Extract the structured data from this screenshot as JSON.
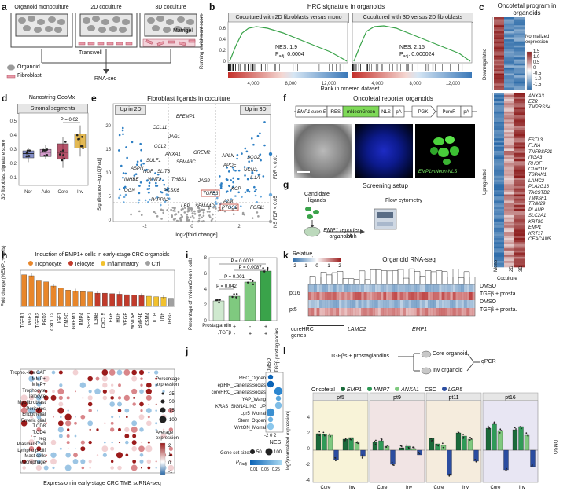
{
  "panel_labels": [
    "a",
    "b",
    "c",
    "d",
    "e",
    "f",
    "g",
    "h",
    "i",
    "j",
    "k",
    "l"
  ],
  "a": {
    "conditions": [
      "Organoid monoculture",
      "2D coculture",
      "3D coculture"
    ],
    "transwell": "Transwell",
    "matrigel": "Matrigel",
    "legend": [
      "Organoid",
      "Fibroblast"
    ],
    "output": "RNA-seq"
  },
  "b": {
    "title": "HRC signature in organoids",
    "ylabel": "Running enrichment score",
    "xlabel": "Rank in ordered dataset",
    "subplots": [
      {
        "header": "Cocultured with 2D fibroblasts versus mono",
        "nes": "NES: 1.9",
        "padj": "0.0004",
        "peak": 0.6,
        "ticks": [
          "4,000",
          "8,000",
          "12,000"
        ]
      },
      {
        "header": "Cocultured with 3D versus 2D fibroblasts",
        "nes": "NES: 2.15",
        "padj": "0.000024",
        "peak": 0.6,
        "ticks": [
          "4,000",
          "8,000",
          "12,000"
        ]
      }
    ],
    "yticks": [
      "0.6",
      "0.4",
      "0.2",
      "0"
    ]
  },
  "c": {
    "title": "Oncofetal program in organoids",
    "legend_title": "Normalized expression",
    "legend_ticks": [
      "1.5",
      "1.0",
      "0.5",
      "0",
      "-0.5",
      "-1.0",
      "-1.5"
    ],
    "row_groups": [
      "Downregulated",
      "Upregulated"
    ],
    "columns": [
      "Mono",
      "2D",
      "3D"
    ],
    "column_group": "Coculture",
    "genes_top": [
      "ANXA3",
      "EZR",
      "TMPRSS4"
    ],
    "genes_bottom": [
      "FSTL3",
      "FLNA",
      "TNFRSF21",
      "ITGA3",
      "RHOF",
      "C1orf116",
      "TSPAN1",
      "LAMC2",
      "PLA2G16",
      "TACSTD2",
      "TM4SF1",
      "TRIM29",
      "PLAUR",
      "SLC2A1",
      "KRT80",
      "EMP1",
      "KRT17",
      "CEACAM5"
    ]
  },
  "d": {
    "title": "Nanostring GeoMx",
    "subtitle": "Stromal segments",
    "ylabel": "3D fibroblast signature score",
    "categories": [
      "Nor",
      "Ade",
      "Core",
      "Inv"
    ],
    "pval": "P = 0.02",
    "yticks": [
      "0.5",
      "0.4",
      "0.3",
      "0.2",
      "0.1"
    ]
  },
  "e": {
    "title": "Fibroblast ligands in coculture",
    "left_tag": "Up in 2D",
    "right_tag": "Up in 3D",
    "ylabel": "Significance –log10[Padj]",
    "xlabel": "log2[fold change]",
    "xticks": [
      "-2",
      "0",
      "2"
    ],
    "yticks": [
      "20",
      "15",
      "10",
      "5",
      "0"
    ],
    "legend": [
      "FDR < 0.01",
      "FDR < 0.05",
      "NS"
    ],
    "labels_left": [
      "EFEMP1",
      "CCL11",
      "JAG1",
      "CCL2",
      "ANXA1",
      "SULF1",
      "SEMA3C",
      "ASPN",
      "NGF",
      "SLIT3",
      "INHBE",
      "WNT2",
      "THBS1",
      "OGN",
      "PCSK6",
      "PAPPA2",
      "SEMA4D",
      "LBP"
    ],
    "labels_right": [
      "GREM2",
      "APLN",
      "SCG2",
      "APOE",
      "UCN2",
      "IL1A",
      "JAG2",
      "KCP",
      "TGFB3",
      "A2M",
      "PTGS2",
      "FGF11"
    ],
    "boxed": [
      "TGFB3",
      "PTGS2"
    ]
  },
  "f": {
    "title": "Oncofetal reporter organoids",
    "construct": [
      "EMP1 exon 5",
      "IRES",
      "mNeonGreen",
      "NLS",
      "pA",
      "PGK",
      "PuroR",
      "pA"
    ],
    "image_label": "EMP1mNeon-NLS"
  },
  "g": {
    "title": "Screening setup",
    "items": [
      "Candidate ligands",
      "EMP1 reporter organoids",
      "Flow cytometry",
      "24 h"
    ]
  },
  "h": {
    "title": "Induction of EMP1+ cells in early-stage CRC organoids",
    "ylabel_top": "Fold change (%EMP1+ cells)",
    "legend": [
      {
        "name": "Trophocyte",
        "color": "#e8862a"
      },
      {
        "name": "Telocyte",
        "color": "#c23b2b"
      },
      {
        "name": "Inflammatory",
        "color": "#f2c12e"
      },
      {
        "name": "Ctrl",
        "color": "#a0a0a0"
      }
    ],
    "ligands": [
      "TGFB1",
      "PGE2",
      "TGFB3",
      "PGD2",
      "CXCL12",
      "IGF1",
      "DMSO",
      "GREM1",
      "BMP4",
      "SFRP1",
      "IL36B",
      "CXCL5",
      "EGF",
      "HGF",
      "VEGF",
      "WNT5A",
      "BMP4b",
      "CSM4",
      "IL1B",
      "TNF",
      "IFNG"
    ],
    "values": [
      3.1,
      3.0,
      2.5,
      2.4,
      2.0,
      1.8,
      1.6,
      1.5,
      1.45,
      1.4,
      1.3,
      1.3,
      1.25,
      1.2,
      1.15,
      1.1,
      1.05,
      1.0,
      0.95,
      0.9,
      0.8
    ],
    "groups": [
      "Trophocyte",
      "Trophocyte",
      "Trophocyte",
      "Trophocyte",
      "Trophocyte",
      "Trophocyte",
      "Trophocyte",
      "Trophocyte",
      "Trophocyte",
      "Trophocyte",
      "Telocyte",
      "Telocyte",
      "Telocyte",
      "Telocyte",
      "Telocyte",
      "Telocyte",
      "Telocyte",
      "Inflammatory",
      "Inflammatory",
      "Inflammatory",
      "Ctrl"
    ],
    "cell_types": [
      "Tropho.-like CAF",
      "MMP+",
      "MMP+",
      "Trophocyte",
      "Telocyte",
      "Myofibroblast",
      "Pericytes",
      "Endothelial",
      "Enteric glial",
      "T.CD8",
      "T.CD4",
      "T_reg",
      "Plasma/B cell",
      "Lympho.prolif",
      "Mast cells",
      "Macrophage"
    ],
    "xlabel": "Expression in early-stage CRC TME scRNA-seq",
    "size_legend_title": "Percentage expression",
    "size_legend": [
      "25",
      "50",
      "75",
      "100"
    ],
    "color_legend_title": "Average expression",
    "color_legend": [
      "2",
      "1",
      "0",
      "-1"
    ]
  },
  "i": {
    "ylabel": "Percentage of mNeonGreen+ cells",
    "rows": [
      "Prostaglandin",
      "TGFβ"
    ],
    "signs": [
      [
        "-",
        "+",
        "-",
        "+"
      ],
      [
        "-",
        "-",
        "+",
        "+"
      ]
    ],
    "values": [
      2.5,
      3.1,
      4.9,
      6.3
    ],
    "pvals": [
      "P = 0.0002",
      "P = 0.0087",
      "P = 0.001",
      "P = 0.042"
    ],
    "yticks": [
      "8",
      "6",
      "4",
      "2",
      "0"
    ]
  },
  "j": {
    "pathways": [
      "REC_Ogden",
      "epiHR_CanellasSocias",
      "coreHRC_CanellasSocias",
      "YAP_Wang",
      "KRAS_SIGNALING_UP",
      "Lgr5_Morral",
      "Stem_Ogden",
      "WntON_Morral"
    ],
    "columns": [
      "DMSO",
      "TGFβ prostaglandins"
    ],
    "xlabel": "NES",
    "xticks": [
      "-2",
      "0",
      "2"
    ],
    "size_title": "Gene set size:",
    "sizes": [
      "50",
      "100"
    ],
    "color_title": "Padj",
    "color_ticks": [
      "0.01",
      "0.05",
      "0.25"
    ]
  },
  "k": {
    "title": "Organoid RNA-seq",
    "legend_title": "Relative expression",
    "legend_ticks": [
      "-2",
      "-1",
      "0",
      "1",
      "2"
    ],
    "rows": [
      "DMSO",
      "TGFβ + prosta.",
      "DMSO",
      "TGFβ + prosta."
    ],
    "groups": [
      "pt16",
      "pt5"
    ],
    "genes_label": "coreHRC genes",
    "highlight": [
      "LAMC2",
      "EMP1"
    ]
  },
  "l": {
    "scheme_left": "TGFβs + prostaglandins",
    "scheme_core": "Core organoid",
    "scheme_inv": "Inv organoid",
    "scheme_out": "qPCR",
    "legend_onco": "Oncofetal",
    "legend_csc": "CSC",
    "genes": [
      {
        "name": "EMP1",
        "color": "#1a6a3a"
      },
      {
        "name": "MMP7",
        "color": "#2f9a57"
      },
      {
        "name": "ANXA1",
        "color": "#7fc97f"
      },
      {
        "name": "LGR5",
        "color": "#2b4da0"
      }
    ],
    "patients": [
      "pt5",
      "pt9",
      "pt11",
      "pt16"
    ],
    "ylabel": "log2[normalized expression]",
    "xcats": [
      "Core",
      "Inv"
    ],
    "yticks": [
      "4",
      "2",
      "0",
      "-2",
      "-4"
    ],
    "right_label": "DMSO",
    "pvals": [
      "P = 0.0347",
      "P = 0.0101",
      "P = 0.0156",
      "P = 0.0065",
      "P = 0.0093",
      "P = 0.0028",
      "P = 0.0314"
    ]
  }
}
